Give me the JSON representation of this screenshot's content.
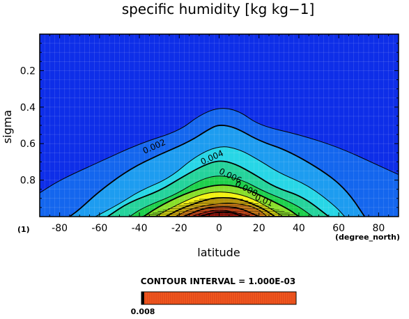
{
  "chart_data": {
    "type": "contour",
    "title": "specific humidity [kg kg−1]",
    "xlabel": "latitude",
    "ylabel": "sigma",
    "x_unit_label": "(degree_north)",
    "y_extra_label": "(1)",
    "xlim": [
      -90,
      90
    ],
    "ylim": [
      0,
      1.0
    ],
    "y_inverted": true,
    "x_ticks": [
      -80,
      -60,
      -40,
      -20,
      0,
      20,
      40,
      60,
      80
    ],
    "y_ticks": [
      0.2,
      0.4,
      0.6,
      0.8
    ],
    "y_tick_labels": [
      "0.2",
      "0.4",
      "0.6",
      "0.8"
    ],
    "grid": true,
    "contour_interval_text": "CONTOUR INTERVAL = 1.000E-03",
    "colorbar_label": "0.008",
    "contour_labels": [
      {
        "text": "0.002",
        "lat": -32,
        "sigma": 0.63
      },
      {
        "text": "0.004",
        "lat": -3,
        "sigma": 0.69
      },
      {
        "text": "0.006",
        "lat": 5,
        "sigma": 0.79
      },
      {
        "text": "0.008",
        "lat": 13,
        "sigma": 0.86
      },
      {
        "text": "0.01",
        "lat": 22,
        "sigma": 0.925
      }
    ],
    "contours": [
      {
        "level": 0.001,
        "points": [
          [
            -90,
            0.87
          ],
          [
            -80,
            0.8
          ],
          [
            -60,
            0.7
          ],
          [
            -40,
            0.6
          ],
          [
            -20,
            0.53
          ],
          [
            -10,
            0.445
          ],
          [
            0,
            0.4
          ],
          [
            10,
            0.42
          ],
          [
            20,
            0.5
          ],
          [
            40,
            0.55
          ],
          [
            60,
            0.62
          ],
          [
            80,
            0.72
          ],
          [
            90,
            0.77
          ]
        ]
      },
      {
        "level": 0.002,
        "points": [
          [
            -75,
            1.0
          ],
          [
            -70,
            0.96
          ],
          [
            -60,
            0.86
          ],
          [
            -45,
            0.74
          ],
          [
            -30,
            0.66
          ],
          [
            -15,
            0.59
          ],
          [
            -5,
            0.52
          ],
          [
            0,
            0.495
          ],
          [
            8,
            0.51
          ],
          [
            20,
            0.585
          ],
          [
            35,
            0.64
          ],
          [
            55,
            0.77
          ],
          [
            65,
            0.87
          ],
          [
            73,
            1.0
          ]
        ]
      },
      {
        "level": 0.003,
        "points": [
          [
            -62,
            1.0
          ],
          [
            -50,
            0.93
          ],
          [
            -40,
            0.86
          ],
          [
            -25,
            0.79
          ],
          [
            -12,
            0.67
          ],
          [
            0,
            0.61
          ],
          [
            10,
            0.63
          ],
          [
            20,
            0.69
          ],
          [
            30,
            0.76
          ],
          [
            45,
            0.83
          ],
          [
            58,
            0.94
          ],
          [
            63,
            1.0
          ]
        ]
      },
      {
        "level": 0.004,
        "points": [
          [
            -56,
            1.0
          ],
          [
            -45,
            0.92
          ],
          [
            -30,
            0.86
          ],
          [
            -18,
            0.78
          ],
          [
            -8,
            0.72
          ],
          [
            0,
            0.69
          ],
          [
            8,
            0.71
          ],
          [
            18,
            0.77
          ],
          [
            28,
            0.84
          ],
          [
            42,
            0.89
          ],
          [
            55,
            1.0
          ]
        ]
      },
      {
        "level": 0.005,
        "points": [
          [
            -45,
            1.0
          ],
          [
            -38,
            0.95
          ],
          [
            -22,
            0.88
          ],
          [
            -10,
            0.8
          ],
          [
            0,
            0.77
          ],
          [
            12,
            0.8
          ],
          [
            22,
            0.86
          ],
          [
            38,
            0.93
          ],
          [
            47,
            1.0
          ]
        ]
      },
      {
        "level": 0.006,
        "points": [
          [
            -38,
            1.0
          ],
          [
            -28,
            0.93
          ],
          [
            -14,
            0.86
          ],
          [
            0,
            0.82
          ],
          [
            12,
            0.84
          ],
          [
            24,
            0.9
          ],
          [
            35,
            0.96
          ],
          [
            40,
            1.0
          ]
        ]
      },
      {
        "level": 0.007,
        "points": [
          [
            -32,
            1.0
          ],
          [
            -22,
            0.94
          ],
          [
            -10,
            0.88
          ],
          [
            0,
            0.86
          ],
          [
            12,
            0.88
          ],
          [
            22,
            0.93
          ],
          [
            32,
            1.0
          ]
        ]
      },
      {
        "level": 0.008,
        "points": [
          [
            -27,
            1.0
          ],
          [
            -18,
            0.95
          ],
          [
            -6,
            0.905
          ],
          [
            0,
            0.895
          ],
          [
            10,
            0.9
          ],
          [
            22,
            0.955
          ],
          [
            28,
            1.0
          ]
        ]
      },
      {
        "level": 0.009,
        "points": [
          [
            -22,
            1.0
          ],
          [
            -14,
            0.955
          ],
          [
            0,
            0.925
          ],
          [
            12,
            0.93
          ],
          [
            20,
            0.96
          ],
          [
            24,
            1.0
          ]
        ]
      },
      {
        "level": 0.01,
        "points": [
          [
            -18,
            1.0
          ],
          [
            -8,
            0.955
          ],
          [
            0,
            0.945
          ],
          [
            10,
            0.95
          ],
          [
            20,
            1.0
          ]
        ]
      },
      {
        "level": 0.011,
        "points": [
          [
            -14,
            1.0
          ],
          [
            -4,
            0.965
          ],
          [
            4,
            0.965
          ],
          [
            16,
            1.0
          ]
        ]
      },
      {
        "level": 0.012,
        "points": [
          [
            -10,
            1.0
          ],
          [
            -2,
            0.975
          ],
          [
            6,
            0.975
          ],
          [
            12,
            1.0
          ]
        ]
      }
    ],
    "fill_colors": [
      "#0e2ee8",
      "#1466ee",
      "#1d9cf0",
      "#27d6e6",
      "#25d39b",
      "#1ed04c",
      "#88de2a",
      "#f2f214",
      "#f4c812",
      "#f0901a",
      "#e8541e",
      "#d02818",
      "#b0180e"
    ]
  }
}
